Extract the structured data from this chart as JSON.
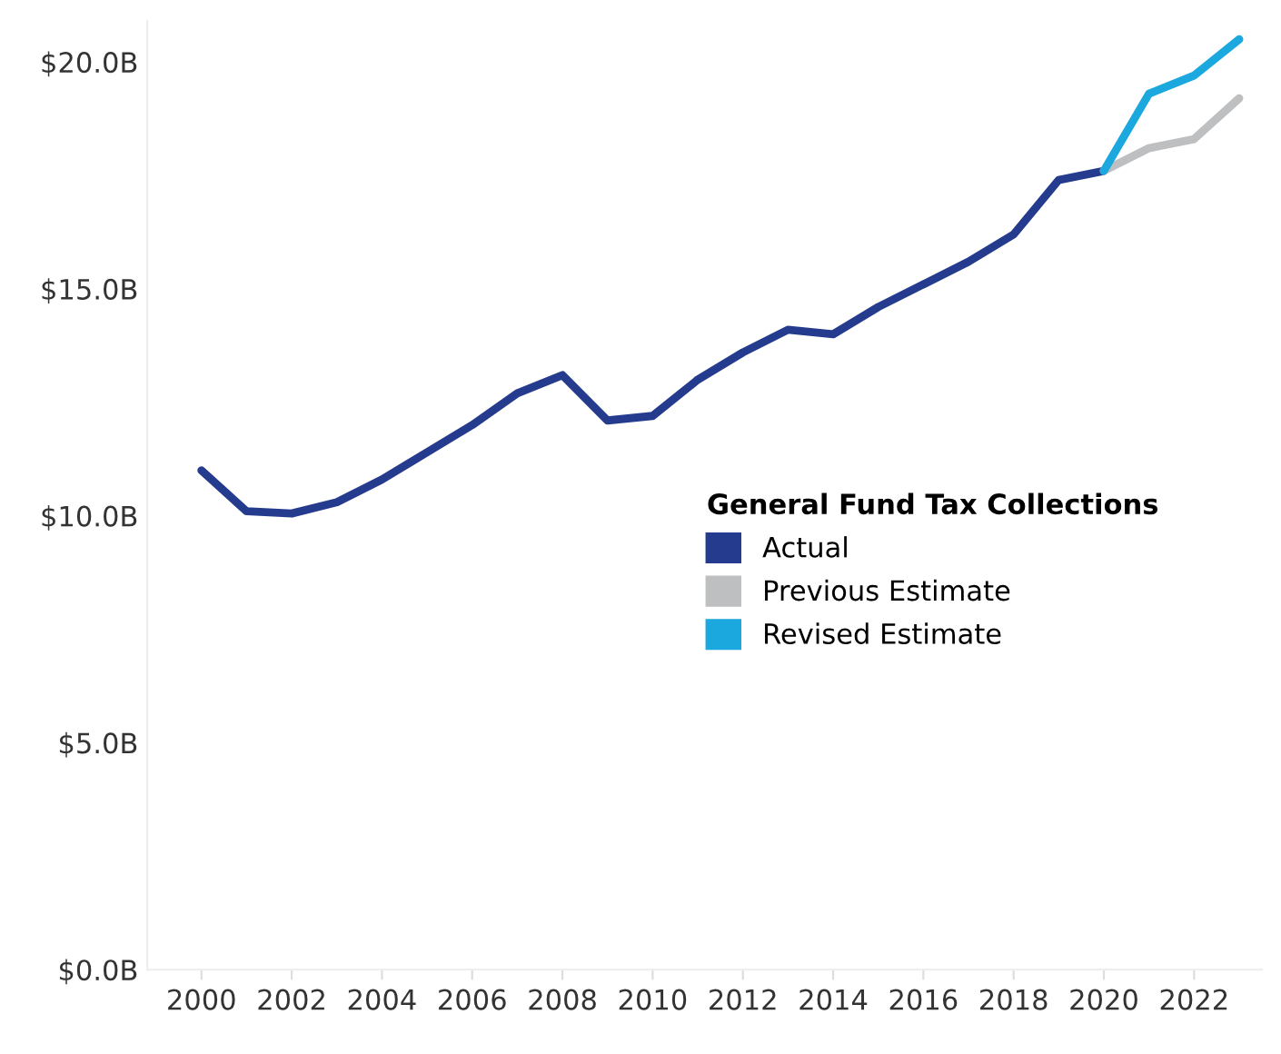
{
  "chart_data": {
    "type": "line",
    "legend_title": "General Fund Tax Collections",
    "legend": "right",
    "grid": false,
    "marker": "none",
    "line_style": "solid",
    "xlim": [
      1998.8,
      2023.5
    ],
    "xticks": [
      2000,
      2002,
      2004,
      2006,
      2008,
      2010,
      2012,
      2014,
      2016,
      2018,
      2020,
      2022
    ],
    "ylim": [
      0,
      20.9
    ],
    "yticks": [
      {
        "value": 0,
        "label": "$0.0B"
      },
      {
        "value": 5,
        "label": "$5.0B"
      },
      {
        "value": 10,
        "label": "$10.0B"
      },
      {
        "value": 15,
        "label": "$15.0B"
      },
      {
        "value": 20,
        "label": "$20.0B"
      }
    ],
    "series": [
      {
        "name": "Actual",
        "color": "#253b8e",
        "x": [
          2000,
          2001,
          2002,
          2003,
          2004,
          2005,
          2006,
          2007,
          2008,
          2009,
          2010,
          2011,
          2012,
          2013,
          2014,
          2015,
          2016,
          2017,
          2018,
          2019,
          2020
        ],
        "values": [
          11.0,
          10.1,
          10.05,
          10.3,
          10.8,
          11.4,
          12.0,
          12.7,
          13.1,
          12.1,
          12.2,
          13.0,
          13.6,
          14.1,
          14.0,
          14.6,
          15.1,
          15.6,
          16.2,
          17.4,
          17.6
        ]
      },
      {
        "name": "Previous Estimate",
        "color": "#bdbfc1",
        "x": [
          2020,
          2021,
          2022,
          2023
        ],
        "values": [
          17.6,
          18.1,
          18.3,
          19.2
        ]
      },
      {
        "name": "Revised Estimate",
        "color": "#1ba8de",
        "x": [
          2020,
          2021,
          2022,
          2023
        ],
        "values": [
          17.6,
          19.3,
          19.7,
          20.5
        ]
      }
    ]
  }
}
